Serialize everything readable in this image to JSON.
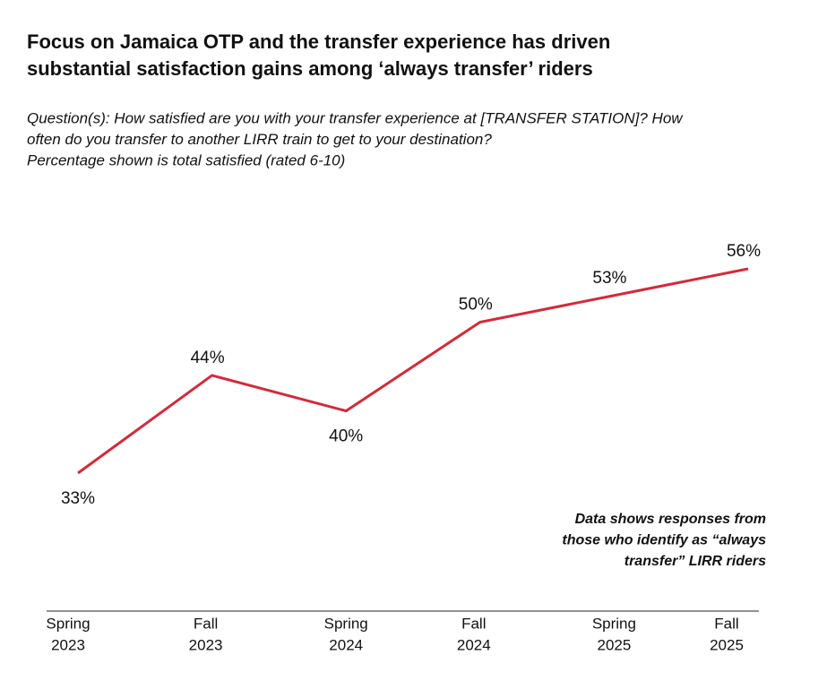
{
  "chart_data": {
    "type": "line",
    "title": [
      "Focus on Jamaica OTP and the transfer experience has driven",
      "substantial satisfaction gains among ‘always transfer’ riders"
    ],
    "subtitle": [
      "Question(s): How satisfied are you with your transfer experience at [TRANSFER STATION]? How",
      "often do you transfer to another LIRR train to get to your destination?",
      "Percentage shown is total satisfied (rated 6-10)"
    ],
    "annotation": [
      "Data shows responses from",
      "those who identify as “always",
      "transfer” LIRR riders"
    ],
    "categories": [
      [
        "Spring",
        "2023"
      ],
      [
        "Fall",
        "2023"
      ],
      [
        "Spring",
        "2024"
      ],
      [
        "Fall",
        "2024"
      ],
      [
        "Spring",
        "2025"
      ],
      [
        "Fall",
        "2025"
      ]
    ],
    "series": [
      {
        "color": "#d42a3a",
        "values": [
          33,
          44,
          40,
          50,
          53,
          56
        ],
        "value_labels": [
          "33%",
          "44%",
          "40%",
          "50%",
          "53%",
          "56%"
        ]
      }
    ]
  }
}
